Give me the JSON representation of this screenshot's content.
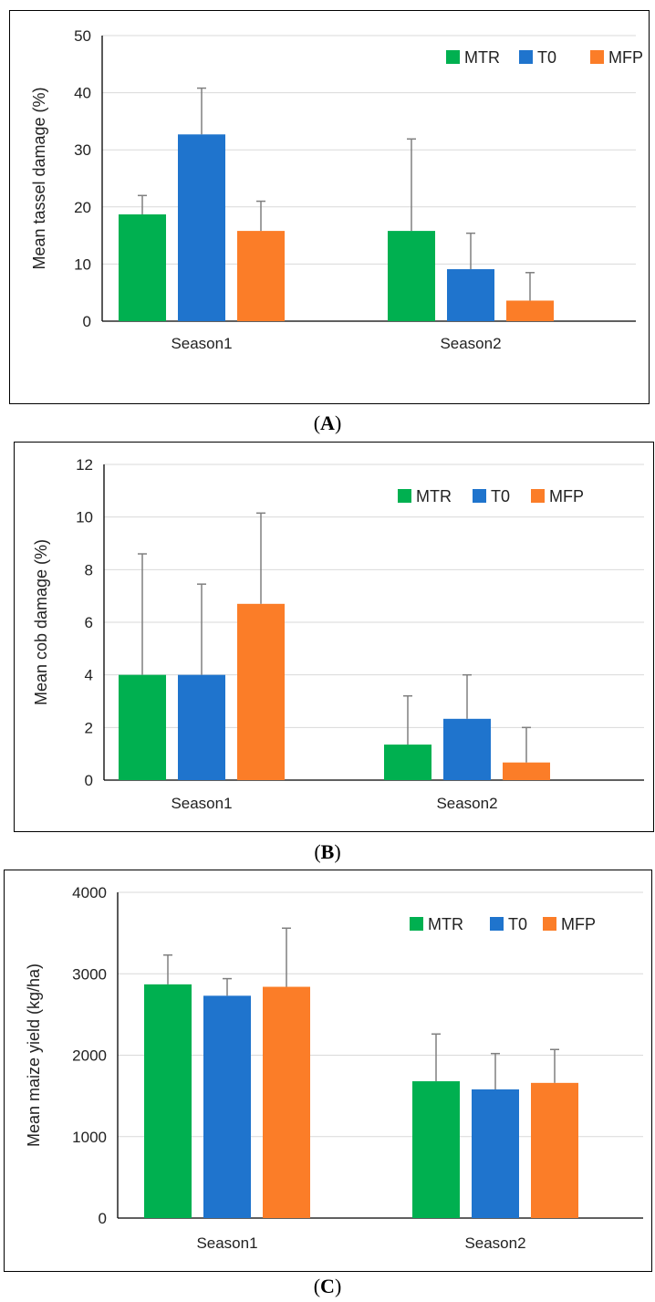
{
  "colors": {
    "MTR": "#00b050",
    "T0": "#1f74cd",
    "MFP": "#fb7d28",
    "grid": "#d9d9d9",
    "axis": "#000000",
    "error": "#7f7f7f"
  },
  "captions": {
    "a": {
      "open": "(",
      "letter": "A",
      "close": ")"
    },
    "b": {
      "open": "(",
      "letter": "B",
      "close": ")"
    },
    "c": {
      "open": "(",
      "letter": "C",
      "close": ")"
    }
  },
  "chart_data": [
    {
      "type": "bar",
      "panel": "A",
      "ylabel": "Mean tassel damage (%)",
      "categories": [
        "Season1",
        "Season2"
      ],
      "ylim": [
        0,
        50
      ],
      "yticks": [
        0,
        10,
        20,
        30,
        40,
        50
      ],
      "grid": true,
      "legend_position": "top-right",
      "series": [
        {
          "name": "MTR",
          "values": [
            18.7,
            15.8
          ],
          "errors": [
            3.3,
            16.1
          ]
        },
        {
          "name": "T0",
          "values": [
            32.7,
            9.1
          ],
          "errors": [
            8.1,
            6.3
          ]
        },
        {
          "name": "MFP",
          "values": [
            15.8,
            3.6
          ],
          "errors": [
            5.2,
            4.9
          ]
        }
      ]
    },
    {
      "type": "bar",
      "panel": "B",
      "ylabel": "Mean cob damage (%)",
      "categories": [
        "Season1",
        "Season2"
      ],
      "ylim": [
        0,
        12
      ],
      "yticks": [
        0,
        2,
        4,
        6,
        8,
        10,
        12
      ],
      "grid": true,
      "legend_position": "top-right",
      "series": [
        {
          "name": "MTR",
          "values": [
            4.0,
            1.35
          ],
          "errors": [
            4.6,
            1.85
          ]
        },
        {
          "name": "T0",
          "values": [
            4.0,
            2.33
          ],
          "errors": [
            3.45,
            1.67
          ]
        },
        {
          "name": "MFP",
          "values": [
            6.7,
            0.67
          ],
          "errors": [
            3.45,
            1.33
          ]
        }
      ]
    },
    {
      "type": "bar",
      "panel": "C",
      "ylabel": "Mean maize yield (kg/ha)",
      "categories": [
        "Season1",
        "Season2"
      ],
      "ylim": [
        0,
        4000
      ],
      "yticks": [
        0,
        1000,
        2000,
        3000,
        4000
      ],
      "grid": true,
      "legend_position": "top-right",
      "series": [
        {
          "name": "MTR",
          "values": [
            2870,
            1680
          ],
          "errors": [
            360,
            580
          ]
        },
        {
          "name": "T0",
          "values": [
            2730,
            1580
          ],
          "errors": [
            210,
            440
          ]
        },
        {
          "name": "MFP",
          "values": [
            2840,
            1660
          ],
          "errors": [
            720,
            410
          ]
        }
      ]
    }
  ]
}
